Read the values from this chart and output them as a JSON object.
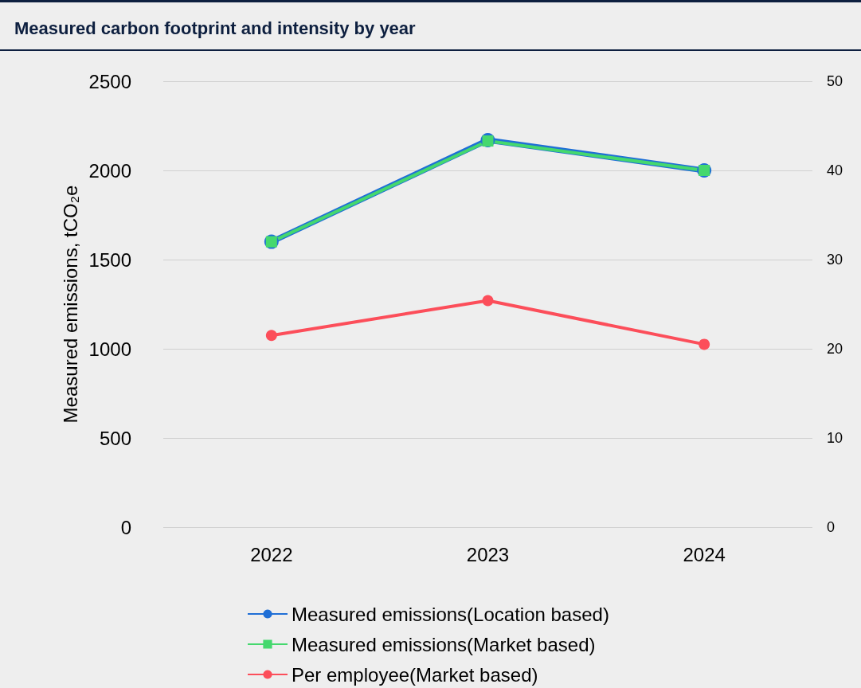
{
  "chart_data": {
    "type": "line",
    "title": "Measured carbon footprint and intensity by year",
    "ylabel": "Measured emissions, tCO₂e",
    "categories": [
      "2022",
      "2023",
      "2024"
    ],
    "series": [
      {
        "name": "Measured emissions(Location based)",
        "color": "#1f6fd6",
        "values": [
          1600,
          2170,
          2000
        ],
        "marker": "circle"
      },
      {
        "name": "Measured emissions(Market based)",
        "color": "#45d86e",
        "values": [
          1600,
          2165,
          2000
        ],
        "marker": "square"
      },
      {
        "name": "Per employee(Market based)",
        "color": "#fc4e5a",
        "values": [
          21.5,
          25.4,
          20.5
        ],
        "marker": "circle",
        "axis": "y2"
      }
    ],
    "ylim": [
      0,
      2500
    ],
    "yticks": [
      0,
      500,
      1000,
      1500,
      2000,
      2500
    ],
    "y2lim": [
      0,
      50
    ],
    "y2ticks": [
      0,
      10,
      20,
      30,
      40,
      50
    ],
    "grid": "y",
    "legend": "bottom",
    "line_style": "solid"
  }
}
